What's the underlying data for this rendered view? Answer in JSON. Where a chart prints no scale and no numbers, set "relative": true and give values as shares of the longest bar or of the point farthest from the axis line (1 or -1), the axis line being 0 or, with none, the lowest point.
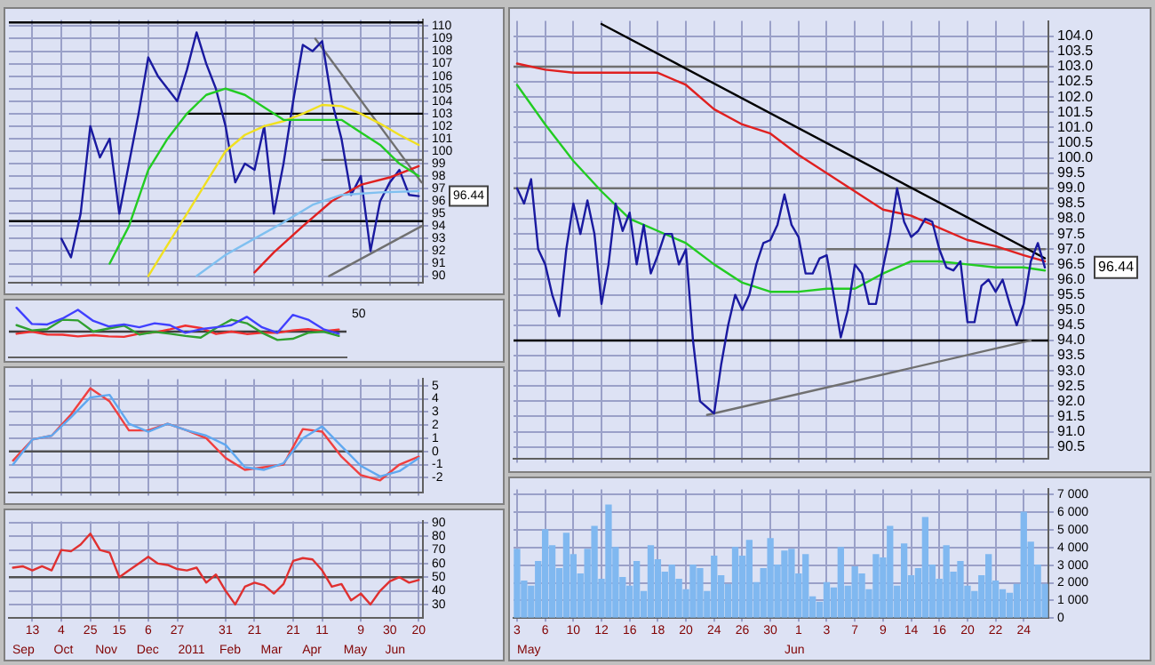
{
  "chart_data": [
    {
      "type": "line",
      "xlim": [
        "2010-08-27",
        "2011-06-23"
      ],
      "ylim": [
        89.5,
        110.5
      ],
      "grid": true,
      "legend": false,
      "tick_labels": "y",
      "marker": "none",
      "line_style": "solid",
      "xticks": [
        {
          "value": "2010-09-13",
          "label": null
        },
        {
          "value": "2010-10-04",
          "label": null
        },
        {
          "value": "2010-10-25",
          "label": null
        },
        {
          "value": "2010-11-15",
          "label": null
        },
        {
          "value": "2010-12-06",
          "label": null
        },
        {
          "value": "2010-12-27",
          "label": null
        },
        {
          "value": "2011-01-31",
          "label": null
        },
        {
          "value": "2011-02-21",
          "label": null
        },
        {
          "value": "2011-03-21",
          "label": null
        },
        {
          "value": "2011-04-11",
          "label": null
        },
        {
          "value": "2011-05-09",
          "label": null
        },
        {
          "value": "2011-05-30",
          "label": null
        },
        {
          "value": "2011-06-20",
          "label": null
        }
      ],
      "yticks": [
        90,
        91,
        92,
        93,
        94,
        95,
        96,
        97,
        98,
        99,
        100,
        101,
        102,
        103,
        104,
        105,
        106,
        107,
        108,
        109,
        110
      ],
      "series": [
        {
          "color": "#80c0f0",
          "x": [
            "2011-01-10",
            "2011-01-31",
            "2011-02-21",
            "2011-03-14",
            "2011-04-04",
            "2011-04-25",
            "2011-05-23",
            "2011-06-20"
          ],
          "values": [
            90,
            91.7,
            93,
            94.3,
            95.7,
            96.5,
            96.7,
            96.8
          ]
        },
        {
          "color": "#22cc22",
          "x": [
            "2010-11-08",
            "2010-11-22",
            "2010-12-06",
            "2010-12-20",
            "2011-01-03",
            "2011-01-17",
            "2011-01-31",
            "2011-02-14",
            "2011-02-28",
            "2011-03-14",
            "2011-03-28",
            "2011-04-11",
            "2011-04-25",
            "2011-05-09",
            "2011-05-23",
            "2011-06-06",
            "2011-06-20"
          ],
          "values": [
            91,
            94,
            98.5,
            101,
            103,
            104.5,
            105,
            104.5,
            103.5,
            102.5,
            102.5,
            102.5,
            102.5,
            101.5,
            100.5,
            99,
            98
          ]
        },
        {
          "color": "#f0e020",
          "x": [
            "2010-12-06",
            "2010-12-20",
            "2011-01-03",
            "2011-01-17",
            "2011-01-31",
            "2011-02-14",
            "2011-02-28",
            "2011-03-14",
            "2011-03-28",
            "2011-04-11",
            "2011-04-25",
            "2011-05-09",
            "2011-05-23",
            "2011-06-06",
            "2011-06-20"
          ],
          "values": [
            90,
            92.5,
            95,
            97.5,
            100,
            101.3,
            102,
            102.4,
            103,
            103.7,
            103.6,
            103,
            102.2,
            101.3,
            100.5
          ]
        },
        {
          "color": "#e02020",
          "x": [
            "2011-02-21",
            "2011-03-07",
            "2011-03-28",
            "2011-04-18",
            "2011-05-09",
            "2011-05-30",
            "2011-06-20"
          ],
          "values": [
            90.3,
            91.9,
            94,
            96,
            97.3,
            97.9,
            98.8
          ]
        },
        {
          "color": "#1a1aa0",
          "x": [
            "2010-10-04",
            "2010-10-11",
            "2010-10-18",
            "2010-10-25",
            "2010-11-01",
            "2010-11-08",
            "2010-11-15",
            "2010-11-22",
            "2010-11-29",
            "2010-12-06",
            "2010-12-13",
            "2010-12-20",
            "2010-12-27",
            "2011-01-03",
            "2011-01-10",
            "2011-01-17",
            "2011-01-24",
            "2011-01-31",
            "2011-02-07",
            "2011-02-14",
            "2011-02-21",
            "2011-02-28",
            "2011-03-07",
            "2011-03-14",
            "2011-03-21",
            "2011-03-28",
            "2011-04-04",
            "2011-04-11",
            "2011-04-18",
            "2011-04-25",
            "2011-05-02",
            "2011-05-09",
            "2011-05-16",
            "2011-05-23",
            "2011-05-30",
            "2011-06-06",
            "2011-06-13",
            "2011-06-20"
          ],
          "values": [
            93,
            91.5,
            95,
            102,
            99.5,
            101,
            95,
            99,
            103,
            107.5,
            106,
            105,
            104,
            106.5,
            109.5,
            107,
            105,
            102,
            97.5,
            99,
            98.5,
            102,
            95,
            99,
            104,
            108.5,
            108,
            108.8,
            104,
            101,
            96.5,
            98,
            92,
            96,
            97.5,
            98.5,
            96.5,
            96.4
          ]
        },
        {
          "color": "#000000",
          "x": [
            "2011-01-03",
            "2011-06-23"
          ],
          "values": [
            103,
            103
          ]
        },
        {
          "color": "#707070",
          "x": [
            "2011-04-11",
            "2011-06-23"
          ],
          "values": [
            99.3,
            99.3
          ]
        },
        {
          "color": "#707070",
          "x": [
            "2011-04-06",
            "2011-06-22"
          ],
          "values": [
            109,
            97.5
          ]
        },
        {
          "color": "#707070",
          "x": [
            "2011-04-16",
            "2011-06-22"
          ],
          "values": [
            90,
            94
          ]
        }
      ],
      "ref_lines": [
        {
          "axis": "y",
          "value": 110.3,
          "color": "#000000"
        },
        {
          "axis": "y",
          "value": 94.4,
          "color": "#000000"
        }
      ],
      "annotations": [
        "96.44"
      ]
    },
    {
      "type": "line",
      "relative": true,
      "grid": true,
      "legend": false,
      "tick_labels": false,
      "marker": "none",
      "line_style": "solid",
      "categories": [
        null,
        null,
        null,
        null,
        null,
        null,
        null,
        null,
        null,
        null,
        null,
        null,
        null,
        null,
        null,
        null,
        null,
        null,
        null,
        null,
        null,
        null
      ],
      "series": [
        {
          "color": "#4040ff",
          "values": [
            1,
            0.32,
            0.3,
            0.55,
            0.91,
            0.45,
            0.22,
            0.3,
            0.18,
            0.35,
            0.27,
            -0.05,
            0.1,
            0.18,
            0.27,
            0.62,
            0.18,
            -0.05,
            0.7,
            0.5,
            0.1,
            -0.09
          ]
        },
        {
          "color": "#30a030",
          "values": [
            0.27,
            0.05,
            0.1,
            0.5,
            0.47,
            0,
            0.13,
            0.25,
            -0.12,
            -0.01,
            -0.09,
            -0.18,
            -0.25,
            0.15,
            0.5,
            0.35,
            -0.05,
            -0.35,
            -0.3,
            -0.05,
            0,
            -0.18
          ]
        },
        {
          "color": "#f03030",
          "values": [
            -0.09,
            0,
            -0.12,
            -0.13,
            -0.2,
            -0.15,
            -0.2,
            -0.22,
            -0.09,
            -0.03,
            0.1,
            0.25,
            0.15,
            -0.1,
            0,
            -0.1,
            -0.05,
            -0.05,
            0.05,
            0.1,
            0.02,
            0.09
          ]
        }
      ],
      "annotations": [
        "50"
      ]
    },
    {
      "type": "line",
      "xlim": [
        "2010-08-27",
        "2011-06-23"
      ],
      "ylim": [
        -3.1,
        5.5
      ],
      "grid": true,
      "legend": false,
      "tick_labels": "y",
      "marker": "none",
      "line_style": "solid",
      "xticks": [
        {
          "value": "2010-09-13",
          "label": null
        },
        {
          "value": "2010-10-04",
          "label": null
        },
        {
          "value": "2010-10-25",
          "label": null
        },
        {
          "value": "2010-11-15",
          "label": null
        },
        {
          "value": "2010-12-06",
          "label": null
        },
        {
          "value": "2010-12-27",
          "label": null
        },
        {
          "value": "2011-01-31",
          "label": null
        },
        {
          "value": "2011-02-21",
          "label": null
        },
        {
          "value": "2011-03-21",
          "label": null
        },
        {
          "value": "2011-04-11",
          "label": null
        },
        {
          "value": "2011-05-09",
          "label": null
        },
        {
          "value": "2011-05-30",
          "label": null
        },
        {
          "value": "2011-06-20",
          "label": null
        }
      ],
      "yticks": [
        -2,
        -1,
        0,
        1,
        2,
        3,
        4,
        5
      ],
      "x": [
        "2010-08-30",
        "2010-09-13",
        "2010-09-27",
        "2010-10-11",
        "2010-10-25",
        "2010-11-08",
        "2010-11-22",
        "2010-12-06",
        "2010-12-20",
        "2011-01-03",
        "2011-01-17",
        "2011-01-31",
        "2011-02-14",
        "2011-02-28",
        "2011-03-14",
        "2011-03-28",
        "2011-04-11",
        "2011-04-25",
        "2011-05-09",
        "2011-05-23",
        "2011-06-06",
        "2011-06-20"
      ],
      "series": [
        {
          "color": "#60a8f0",
          "values": [
            -1,
            0.9,
            1.2,
            2.6,
            4.1,
            4.3,
            2.1,
            1.5,
            2.1,
            1.6,
            1.2,
            0.5,
            -1.2,
            -1.4,
            -0.9,
            1,
            1.9,
            0.4,
            -1.1,
            -1.9,
            -1.5,
            -0.5
          ]
        },
        {
          "color": "#f04040",
          "values": [
            -0.7,
            0.9,
            1.2,
            2.8,
            4.8,
            3.8,
            1.6,
            1.6,
            2.1,
            1.6,
            1,
            -0.5,
            -1.4,
            -1.2,
            -1,
            1.7,
            1.5,
            -0.4,
            -1.8,
            -2.2,
            -1,
            -0.4
          ]
        }
      ],
      "ref_lines": [
        {
          "axis": "y",
          "value": 0,
          "color": "#505050"
        }
      ]
    },
    {
      "type": "line",
      "xlim": [
        "2010-08-27",
        "2011-06-23"
      ],
      "ylim": [
        20,
        91
      ],
      "grid": true,
      "legend": false,
      "marker": "none",
      "line_style": "solid",
      "xticks": [
        {
          "value": "2010-09-13",
          "label": "13"
        },
        {
          "value": "2010-10-04",
          "label": "4"
        },
        {
          "value": "2010-10-25",
          "label": "25"
        },
        {
          "value": "2010-11-15",
          "label": "15"
        },
        {
          "value": "2010-12-06",
          "label": "6"
        },
        {
          "value": "2010-12-27",
          "label": "27"
        },
        {
          "value": "2011-01-31",
          "label": "31"
        },
        {
          "value": "2011-02-21",
          "label": "21"
        },
        {
          "value": "2011-03-21",
          "label": "21"
        },
        {
          "value": "2011-04-11",
          "label": "11"
        },
        {
          "value": "2011-05-09",
          "label": "9"
        },
        {
          "value": "2011-05-30",
          "label": "30"
        },
        {
          "value": "2011-06-20",
          "label": "20"
        }
      ],
      "yticks": [
        30,
        40,
        50,
        60,
        70,
        80,
        90
      ],
      "series": [
        {
          "color": "#e03030",
          "x": [
            "2010-08-30",
            "2010-09-06",
            "2010-09-13",
            "2010-09-20",
            "2010-09-27",
            "2010-10-04",
            "2010-10-11",
            "2010-10-18",
            "2010-10-25",
            "2010-11-01",
            "2010-11-08",
            "2010-11-15",
            "2010-11-22",
            "2010-11-29",
            "2010-12-06",
            "2010-12-13",
            "2010-12-20",
            "2010-12-27",
            "2011-01-03",
            "2011-01-10",
            "2011-01-17",
            "2011-01-24",
            "2011-01-31",
            "2011-02-07",
            "2011-02-14",
            "2011-02-21",
            "2011-02-28",
            "2011-03-07",
            "2011-03-14",
            "2011-03-21",
            "2011-03-28",
            "2011-04-04",
            "2011-04-11",
            "2011-04-18",
            "2011-04-25",
            "2011-05-02",
            "2011-05-09",
            "2011-05-16",
            "2011-05-23",
            "2011-05-30",
            "2011-06-06",
            "2011-06-13",
            "2011-06-20"
          ],
          "values": [
            57,
            58,
            55,
            58,
            55,
            70,
            69,
            74,
            82,
            70,
            68,
            50,
            55,
            60,
            65,
            60,
            59,
            56,
            55,
            57,
            46,
            52,
            40,
            30,
            43,
            46,
            44,
            38,
            45,
            62,
            64,
            63,
            55,
            43,
            45,
            33,
            38,
            30,
            40,
            47,
            50,
            46,
            48
          ]
        }
      ],
      "ref_lines": [
        {
          "axis": "y",
          "value": 50,
          "color": "#505050"
        }
      ],
      "annotations": [
        "Sep",
        "Oct",
        "Nov",
        "Dec",
        "2011",
        "Feb",
        "Mar",
        "Apr",
        "May",
        "Jun"
      ]
    },
    {
      "type": "line",
      "ylim": [
        90.1,
        104.5
      ],
      "grid": true,
      "legend": false,
      "tick_labels": "y",
      "marker": "none",
      "line_style": "solid",
      "categories": [
        "3",
        null,
        null,
        null,
        "6",
        null,
        null,
        null,
        "10",
        null,
        null,
        null,
        "12",
        null,
        null,
        null,
        "16",
        null,
        null,
        null,
        "18",
        null,
        null,
        null,
        "20",
        null,
        null,
        null,
        "24",
        null,
        null,
        null,
        "26",
        null,
        null,
        null,
        "30",
        null,
        null,
        null,
        "1",
        null,
        null,
        null,
        "3",
        null,
        null,
        null,
        "7",
        null,
        null,
        null,
        "9",
        null,
        null,
        null,
        "14",
        null,
        null,
        null,
        "16",
        null,
        null,
        null,
        "20",
        null,
        null,
        null,
        "22",
        null,
        null,
        null,
        "24",
        null,
        null,
        null
      ],
      "yticks": [
        {
          "value": 90.5,
          "label": "90.5"
        },
        {
          "value": 91,
          "label": "91.0"
        },
        {
          "value": 91.5,
          "label": "91.5"
        },
        {
          "value": 92,
          "label": "92.0"
        },
        {
          "value": 92.5,
          "label": "92.5"
        },
        {
          "value": 93,
          "label": "93.0"
        },
        {
          "value": 93.5,
          "label": "93.5"
        },
        {
          "value": 94,
          "label": "94.0"
        },
        {
          "value": 94.5,
          "label": "94.5"
        },
        {
          "value": 95,
          "label": "95.0"
        },
        {
          "value": 95.5,
          "label": "95.5"
        },
        {
          "value": 96,
          "label": "96.0"
        },
        {
          "value": 96.5,
          "label": "96.5"
        },
        {
          "value": 97,
          "label": "97.0"
        },
        {
          "value": 97.5,
          "label": "97.5"
        },
        {
          "value": 98,
          "label": "98.0"
        },
        {
          "value": 98.5,
          "label": "98.5"
        },
        {
          "value": 99,
          "label": "99.0"
        },
        {
          "value": 99.5,
          "label": "99.5"
        },
        {
          "value": 100,
          "label": "100.0"
        },
        {
          "value": 100.5,
          "label": "100.5"
        },
        {
          "value": 101,
          "label": "101.0"
        },
        {
          "value": 101.5,
          "label": "101.5"
        },
        {
          "value": 102,
          "label": "102.0"
        },
        {
          "value": 102.5,
          "label": "102.5"
        },
        {
          "value": 103,
          "label": "103.0"
        },
        {
          "value": 103.5,
          "label": "103.5"
        },
        {
          "value": 104,
          "label": "104.0"
        }
      ],
      "series": [
        {
          "color": "#1a1aa0",
          "values": [
            99,
            98.5,
            99.3,
            97,
            96.5,
            95.5,
            94.8,
            97,
            98.5,
            97.5,
            98.6,
            97.5,
            95.2,
            96.5,
            98.5,
            97.6,
            98.2,
            96.5,
            97.8,
            96.2,
            96.8,
            97.5,
            97.5,
            96.5,
            97,
            94,
            92,
            91.8,
            91.6,
            93.2,
            94.5,
            95.5,
            95,
            95.5,
            96.5,
            97.2,
            97.3,
            97.8,
            98.8,
            97.8,
            97.4,
            96.2,
            96.2,
            96.7,
            96.8,
            95.5,
            94.1,
            95,
            96.5,
            96.2,
            95.2,
            95.2,
            96.4,
            97.5,
            99,
            97.9,
            97.4,
            97.6,
            98,
            97.9,
            97,
            96.4,
            96.3,
            96.6,
            94.6,
            94.6,
            95.8,
            96,
            95.6,
            96,
            95.2,
            94.5,
            95.2,
            96.6,
            97.2,
            96.4
          ]
        },
        {
          "color": "#e02020",
          "values": [
            103.1,
            null,
            null,
            null,
            102.9,
            null,
            null,
            null,
            102.8,
            null,
            null,
            null,
            102.8,
            null,
            null,
            null,
            102.8,
            null,
            null,
            null,
            102.8,
            null,
            null,
            null,
            102.4,
            null,
            null,
            null,
            101.6,
            null,
            null,
            null,
            101.1,
            null,
            null,
            null,
            100.8,
            null,
            null,
            null,
            100.1,
            null,
            null,
            null,
            99.5,
            null,
            null,
            null,
            98.9,
            null,
            null,
            null,
            98.3,
            null,
            null,
            null,
            98.1,
            null,
            null,
            null,
            97.7,
            null,
            null,
            null,
            97.3,
            null,
            null,
            null,
            97.1,
            null,
            null,
            null,
            96.8,
            null,
            null,
            96.6
          ]
        },
        {
          "color": "#22cc22",
          "values": [
            102.4,
            null,
            null,
            null,
            101.1,
            null,
            null,
            null,
            99.9,
            null,
            null,
            null,
            98.9,
            null,
            null,
            null,
            98,
            null,
            null,
            null,
            97.6,
            null,
            null,
            null,
            97.2,
            null,
            null,
            null,
            96.5,
            null,
            null,
            null,
            95.9,
            null,
            null,
            null,
            95.6,
            null,
            null,
            null,
            95.6,
            null,
            null,
            null,
            95.7,
            null,
            null,
            null,
            95.7,
            null,
            null,
            null,
            96.2,
            null,
            null,
            null,
            96.6,
            null,
            null,
            null,
            96.6,
            null,
            null,
            null,
            96.5,
            null,
            null,
            null,
            96.4,
            null,
            null,
            null,
            96.4,
            null,
            null,
            96.3
          ]
        },
        {
          "color": "#000000",
          "values": [
            null,
            null,
            null,
            null,
            null,
            null,
            null,
            null,
            null,
            null,
            null,
            null,
            104.4,
            null,
            null,
            null,
            null,
            null,
            null,
            null,
            null,
            null,
            null,
            null,
            null,
            null,
            null,
            null,
            null,
            null,
            null,
            null,
            null,
            null,
            null,
            null,
            null,
            null,
            null,
            null,
            null,
            null,
            null,
            null,
            null,
            null,
            null,
            null,
            null,
            null,
            null,
            null,
            null,
            null,
            null,
            null,
            null,
            null,
            null,
            null,
            null,
            null,
            null,
            null,
            null,
            null,
            null,
            null,
            null,
            null,
            null,
            null,
            null,
            null,
            null,
            96.7
          ]
        },
        {
          "color": "#707070",
          "values": [
            null,
            null,
            null,
            null,
            null,
            null,
            null,
            null,
            null,
            null,
            null,
            null,
            null,
            null,
            null,
            null,
            null,
            null,
            null,
            null,
            null,
            null,
            null,
            null,
            null,
            null,
            null,
            91.55,
            null,
            null,
            null,
            null,
            null,
            null,
            null,
            null,
            null,
            null,
            null,
            null,
            null,
            null,
            null,
            null,
            null,
            null,
            null,
            null,
            null,
            null,
            null,
            null,
            null,
            null,
            null,
            null,
            null,
            null,
            null,
            null,
            null,
            null,
            null,
            null,
            null,
            null,
            null,
            null,
            null,
            null,
            null,
            null,
            null,
            94,
            null,
            null
          ]
        },
        {
          "color": "#707070",
          "values": [
            null,
            null,
            null,
            null,
            null,
            null,
            null,
            null,
            null,
            null,
            null,
            null,
            null,
            null,
            null,
            null,
            null,
            null,
            null,
            null,
            null,
            null,
            null,
            null,
            null,
            null,
            null,
            null,
            null,
            null,
            null,
            null,
            null,
            null,
            null,
            null,
            null,
            null,
            null,
            null,
            null,
            null,
            null,
            null,
            97,
            null,
            null,
            null,
            null,
            null,
            null,
            null,
            null,
            null,
            null,
            null,
            null,
            null,
            null,
            null,
            null,
            null,
            null,
            null,
            null,
            null,
            null,
            null,
            null,
            null,
            null,
            null,
            null,
            null,
            null,
            97
          ]
        }
      ],
      "ref_lines": [
        {
          "axis": "y",
          "value": 103,
          "color": "#707070"
        },
        {
          "axis": "y",
          "value": 99,
          "color": "#707070"
        },
        {
          "axis": "y",
          "value": 94,
          "color": "#000000"
        }
      ],
      "annotations": [
        "96.44"
      ]
    },
    {
      "type": "bar",
      "ylim": [
        0,
        7300
      ],
      "grid": true,
      "legend": false,
      "categories": [
        "3",
        null,
        null,
        null,
        "6",
        null,
        null,
        null,
        "10",
        null,
        null,
        null,
        "12",
        null,
        null,
        null,
        "16",
        null,
        null,
        null,
        "18",
        null,
        null,
        null,
        "20",
        null,
        null,
        null,
        "24",
        null,
        null,
        null,
        "26",
        null,
        null,
        null,
        "30",
        null,
        null,
        null,
        "1",
        null,
        null,
        null,
        "3",
        null,
        null,
        null,
        "7",
        null,
        null,
        null,
        "9",
        null,
        null,
        null,
        "14",
        null,
        null,
        null,
        "16",
        null,
        null,
        null,
        "20",
        null,
        null,
        null,
        "22",
        null,
        null,
        null,
        "24",
        null,
        null,
        null
      ],
      "yticks": [
        {
          "value": 0,
          "label": "0"
        },
        {
          "value": 1000,
          "label": "1 000"
        },
        {
          "value": 2000,
          "label": "2 000"
        },
        {
          "value": 3000,
          "label": "3 000"
        },
        {
          "value": 4000,
          "label": "4 000"
        },
        {
          "value": 5000,
          "label": "5 000"
        },
        {
          "value": 6000,
          "label": "6 000"
        },
        {
          "value": 7000,
          "label": "7 000"
        }
      ],
      "series": [
        {
          "color": "#80b8f0",
          "values": [
            3900,
            2100,
            1800,
            3200,
            5000,
            4100,
            2800,
            4800,
            3600,
            2500,
            3900,
            5200,
            2200,
            6400,
            4000,
            2300,
            1800,
            3200,
            1500,
            4100,
            3300,
            2600,
            3000,
            2200,
            1600,
            3000,
            2800,
            1500,
            3500,
            2400,
            1900,
            4000,
            3500,
            4400,
            2000,
            2800,
            4500,
            3000,
            3800,
            3900,
            2500,
            3600,
            1200,
            900,
            2000,
            1700,
            4000,
            1800,
            2900,
            2500,
            1600,
            3600,
            3400,
            5200,
            1800,
            4200,
            2400,
            2800,
            5700,
            3000,
            2200,
            4100,
            2600,
            3200,
            1800,
            1500,
            2400,
            3600,
            2100,
            1600,
            1400,
            1900,
            6000,
            4300,
            3000,
            1900
          ]
        }
      ],
      "annotations": [
        "May",
        "Jun"
      ]
    }
  ]
}
